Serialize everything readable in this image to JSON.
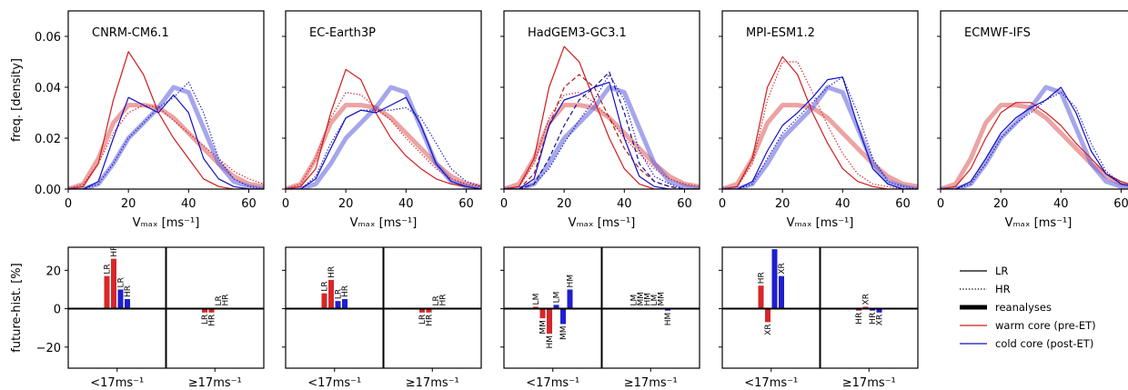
{
  "chart_data": [
    {
      "type": "line",
      "title": "CNRM-CM6.1",
      "xlabel": "Vₘₐₓ [ms⁻¹]",
      "ylabel": "freq. [density]",
      "x": [
        0,
        5,
        10,
        15,
        20,
        25,
        30,
        35,
        40,
        45,
        50,
        55,
        60,
        65
      ],
      "xlim": [
        0,
        65
      ],
      "xticks": [
        0,
        20,
        40,
        60
      ],
      "ylim": [
        0,
        0.07
      ],
      "yticks": [
        {
          "value": 0,
          "label": "0.00"
        },
        {
          "value": 0.02,
          "label": "0.02"
        },
        {
          "value": 0.04,
          "label": "0.04"
        },
        {
          "value": 0.06,
          "label": "0.06"
        }
      ],
      "series": [
        {
          "name": "reanalyses",
          "color": "#e06666",
          "style": "thick",
          "values": [
            0,
            0.002,
            0.012,
            0.026,
            0.033,
            0.033,
            0.032,
            0.028,
            0.022,
            0.016,
            0.01,
            0.005,
            0.002,
            0.001
          ]
        },
        {
          "name": "reanalyses",
          "color": "#6a6ae0",
          "style": "thick",
          "values": [
            0,
            0,
            0.002,
            0.01,
            0.02,
            0.026,
            0.032,
            0.04,
            0.038,
            0.024,
            0.01,
            0.003,
            0.001,
            0
          ]
        },
        {
          "name": "LR",
          "color": "#d01c1c",
          "style": "solid",
          "values": [
            0,
            0.001,
            0.01,
            0.035,
            0.054,
            0.045,
            0.03,
            0.02,
            0.012,
            0.004,
            0.001,
            0,
            0,
            0
          ]
        },
        {
          "name": "HR",
          "color": "#d01c1c",
          "style": "dotted",
          "values": [
            0,
            0.002,
            0.01,
            0.022,
            0.03,
            0.033,
            0.032,
            0.027,
            0.022,
            0.017,
            0.012,
            0.007,
            0.004,
            0.002
          ]
        },
        {
          "name": "LR",
          "color": "#1010c0",
          "style": "solid",
          "values": [
            0,
            0,
            0.003,
            0.02,
            0.036,
            0.033,
            0.03,
            0.037,
            0.03,
            0.012,
            0.004,
            0.001,
            0,
            0
          ]
        },
        {
          "name": "HR",
          "color": "#1010c0",
          "style": "dotted",
          "values": [
            0,
            0,
            0.002,
            0.01,
            0.02,
            0.026,
            0.032,
            0.036,
            0.042,
            0.03,
            0.012,
            0.004,
            0.001,
            0
          ]
        }
      ]
    },
    {
      "type": "line",
      "title": "EC-Earth3P",
      "xlabel": "Vₘₐₓ [ms⁻¹]",
      "x": [
        0,
        5,
        10,
        15,
        20,
        25,
        30,
        35,
        40,
        45,
        50,
        55,
        60,
        65
      ],
      "xlim": [
        0,
        65
      ],
      "xticks": [
        0,
        20,
        40,
        60
      ],
      "ylim": [
        0,
        0.07
      ],
      "series": [
        {
          "name": "reanalyses",
          "color": "#e06666",
          "style": "thick",
          "values": [
            0,
            0.002,
            0.012,
            0.026,
            0.033,
            0.033,
            0.032,
            0.028,
            0.022,
            0.016,
            0.01,
            0.005,
            0.002,
            0.001
          ]
        },
        {
          "name": "reanalyses",
          "color": "#6a6ae0",
          "style": "thick",
          "values": [
            0,
            0,
            0.002,
            0.01,
            0.02,
            0.026,
            0.032,
            0.04,
            0.038,
            0.024,
            0.01,
            0.003,
            0.001,
            0
          ]
        },
        {
          "name": "LR",
          "color": "#d01c1c",
          "style": "solid",
          "values": [
            0,
            0.001,
            0.008,
            0.03,
            0.047,
            0.043,
            0.03,
            0.02,
            0.013,
            0.008,
            0.004,
            0.002,
            0.001,
            0
          ]
        },
        {
          "name": "HR",
          "color": "#d01c1c",
          "style": "dotted",
          "values": [
            0,
            0.002,
            0.012,
            0.028,
            0.038,
            0.037,
            0.032,
            0.027,
            0.02,
            0.014,
            0.008,
            0.004,
            0.002,
            0.001
          ]
        },
        {
          "name": "LR",
          "color": "#1010c0",
          "style": "solid",
          "values": [
            0,
            0,
            0.004,
            0.016,
            0.028,
            0.031,
            0.03,
            0.033,
            0.036,
            0.025,
            0.01,
            0.003,
            0.001,
            0
          ]
        },
        {
          "name": "HR",
          "color": "#1010c0",
          "style": "dotted",
          "values": [
            0,
            0,
            0.005,
            0.018,
            0.028,
            0.031,
            0.031,
            0.031,
            0.032,
            0.028,
            0.018,
            0.008,
            0.003,
            0.001
          ]
        }
      ]
    },
    {
      "type": "line",
      "title": "HadGEM3-GC3.1",
      "xlabel": "Vₘₐₓ [ms⁻¹]",
      "x": [
        0,
        5,
        10,
        15,
        20,
        25,
        30,
        35,
        40,
        45,
        50,
        55,
        60,
        65
      ],
      "xlim": [
        0,
        65
      ],
      "xticks": [
        0,
        20,
        40,
        60
      ],
      "ylim": [
        0,
        0.07
      ],
      "series": [
        {
          "name": "reanalyses",
          "color": "#e06666",
          "style": "thick",
          "values": [
            0,
            0.002,
            0.012,
            0.026,
            0.033,
            0.033,
            0.032,
            0.028,
            0.022,
            0.016,
            0.01,
            0.005,
            0.002,
            0.001
          ]
        },
        {
          "name": "reanalyses",
          "color": "#6a6ae0",
          "style": "thick",
          "values": [
            0,
            0,
            0.002,
            0.01,
            0.02,
            0.026,
            0.032,
            0.04,
            0.038,
            0.024,
            0.01,
            0.003,
            0.001,
            0
          ]
        },
        {
          "name": "LR",
          "color": "#d01c1c",
          "style": "solid",
          "values": [
            0,
            0.001,
            0.012,
            0.04,
            0.056,
            0.05,
            0.035,
            0.02,
            0.008,
            0.002,
            0,
            0,
            0,
            0
          ]
        },
        {
          "name": "MM",
          "color": "#b01818",
          "style": "dashed",
          "values": [
            0,
            0,
            0.006,
            0.025,
            0.04,
            0.045,
            0.04,
            0.028,
            0.016,
            0.008,
            0.003,
            0.001,
            0,
            0
          ]
        },
        {
          "name": "HR",
          "color": "#d01c1c",
          "style": "dotted",
          "values": [
            0,
            0.001,
            0.01,
            0.028,
            0.037,
            0.038,
            0.034,
            0.028,
            0.02,
            0.014,
            0.008,
            0.004,
            0.002,
            0.001
          ]
        },
        {
          "name": "LR",
          "color": "#1010c0",
          "style": "solid",
          "values": [
            0,
            0,
            0.004,
            0.025,
            0.035,
            0.037,
            0.04,
            0.042,
            0.02,
            0.005,
            0.001,
            0,
            0,
            0
          ]
        },
        {
          "name": "MM",
          "color": "#101090",
          "style": "dashed",
          "values": [
            0,
            0,
            0.002,
            0.012,
            0.025,
            0.035,
            0.04,
            0.046,
            0.03,
            0.01,
            0.003,
            0.001,
            0,
            0
          ]
        },
        {
          "name": "HR",
          "color": "#1010c0",
          "style": "dotted",
          "values": [
            0,
            0,
            0.002,
            0.008,
            0.018,
            0.027,
            0.035,
            0.045,
            0.035,
            0.015,
            0.005,
            0.002,
            0,
            0
          ]
        }
      ]
    },
    {
      "type": "line",
      "title": "MPI-ESM1.2",
      "xlabel": "Vₘₐₓ [ms⁻¹]",
      "x": [
        0,
        5,
        10,
        15,
        20,
        25,
        30,
        35,
        40,
        45,
        50,
        55,
        60,
        65
      ],
      "xlim": [
        0,
        65
      ],
      "xticks": [
        0,
        20,
        40,
        60
      ],
      "ylim": [
        0,
        0.07
      ],
      "series": [
        {
          "name": "reanalyses",
          "color": "#e06666",
          "style": "thick",
          "values": [
            0,
            0.002,
            0.012,
            0.026,
            0.033,
            0.033,
            0.032,
            0.028,
            0.022,
            0.016,
            0.01,
            0.005,
            0.002,
            0.001
          ]
        },
        {
          "name": "reanalyses",
          "color": "#6a6ae0",
          "style": "thick",
          "values": [
            0,
            0,
            0.002,
            0.01,
            0.02,
            0.026,
            0.032,
            0.04,
            0.038,
            0.024,
            0.01,
            0.003,
            0.001,
            0
          ]
        },
        {
          "name": "LR",
          "color": "#d01c1c",
          "style": "solid",
          "values": [
            0,
            0.001,
            0.012,
            0.04,
            0.052,
            0.045,
            0.03,
            0.018,
            0.008,
            0.003,
            0.001,
            0,
            0,
            0
          ]
        },
        {
          "name": "HR",
          "color": "#d01c1c",
          "style": "dotted",
          "values": [
            0,
            0.001,
            0.01,
            0.035,
            0.05,
            0.05,
            0.038,
            0.025,
            0.014,
            0.006,
            0.002,
            0.001,
            0,
            0
          ]
        },
        {
          "name": "LR",
          "color": "#1010c0",
          "style": "solid",
          "values": [
            0,
            0,
            0.003,
            0.015,
            0.025,
            0.03,
            0.036,
            0.043,
            0.044,
            0.025,
            0.008,
            0.002,
            0,
            0
          ]
        },
        {
          "name": "HR",
          "color": "#1010c0",
          "style": "dotted",
          "values": [
            0,
            0,
            0.002,
            0.012,
            0.022,
            0.028,
            0.034,
            0.04,
            0.044,
            0.03,
            0.012,
            0.003,
            0.001,
            0
          ]
        }
      ]
    },
    {
      "type": "line",
      "title": "ECMWF-IFS",
      "xlabel": "Vₘₐₓ [ms⁻¹]",
      "x": [
        0,
        5,
        10,
        15,
        20,
        25,
        30,
        35,
        40,
        45,
        50,
        55,
        60,
        65
      ],
      "xlim": [
        0,
        65
      ],
      "xticks": [
        0,
        20,
        40,
        60
      ],
      "ylim": [
        0,
        0.07
      ],
      "series": [
        {
          "name": "reanalyses",
          "color": "#e06666",
          "style": "thick",
          "values": [
            0,
            0.002,
            0.012,
            0.026,
            0.033,
            0.033,
            0.032,
            0.028,
            0.022,
            0.016,
            0.01,
            0.005,
            0.002,
            0.001
          ]
        },
        {
          "name": "reanalyses",
          "color": "#6a6ae0",
          "style": "thick",
          "values": [
            0,
            0,
            0.002,
            0.01,
            0.02,
            0.026,
            0.032,
            0.04,
            0.038,
            0.024,
            0.01,
            0.003,
            0.001,
            0
          ]
        },
        {
          "name": "LR",
          "color": "#d01c1c",
          "style": "solid",
          "values": [
            0,
            0.001,
            0.008,
            0.02,
            0.03,
            0.034,
            0.034,
            0.03,
            0.025,
            0.018,
            0.012,
            0.006,
            0.003,
            0.001
          ]
        },
        {
          "name": "LR",
          "color": "#1010c0",
          "style": "solid",
          "values": [
            0,
            0,
            0.003,
            0.012,
            0.022,
            0.028,
            0.032,
            0.035,
            0.04,
            0.03,
            0.015,
            0.006,
            0.002,
            0.001
          ]
        },
        {
          "name": "HR",
          "color": "#1010c0",
          "style": "dotted",
          "values": [
            0,
            0,
            0.002,
            0.01,
            0.02,
            0.026,
            0.03,
            0.035,
            0.038,
            0.032,
            0.018,
            0.007,
            0.002,
            0.001
          ]
        }
      ]
    },
    {
      "type": "bar",
      "ylabel": "future-hist. [%]",
      "categories": [
        "<17ms⁻¹",
        "≥17ms⁻¹"
      ],
      "ylim": [
        -31,
        32
      ],
      "yticks": [
        {
          "value": -20,
          "label": "−20"
        },
        0,
        20
      ],
      "groups": [
        {
          "label": "LR",
          "color": "#d62728",
          "values": [
            17,
            -2
          ]
        },
        {
          "label": "HR",
          "color": "#d62728",
          "values": [
            26,
            -2
          ]
        },
        {
          "label": "LR",
          "color": "#1f1fd0",
          "values": [
            10,
            0.5
          ]
        },
        {
          "label": "HR",
          "color": "#1f1fd0",
          "values": [
            5,
            0.5
          ]
        }
      ]
    },
    {
      "type": "bar",
      "categories": [
        "<17ms⁻¹",
        "≥17ms⁻¹"
      ],
      "ylim": [
        -31,
        32
      ],
      "groups": [
        {
          "label": "LR",
          "color": "#d62728",
          "values": [
            8,
            -2
          ]
        },
        {
          "label": "HR",
          "color": "#d62728",
          "values": [
            15,
            -2
          ]
        },
        {
          "label": "LR",
          "color": "#1f1fd0",
          "values": [
            4,
            0.5
          ]
        },
        {
          "label": "HR",
          "color": "#1f1fd0",
          "values": [
            5,
            0.5
          ]
        }
      ]
    },
    {
      "type": "bar",
      "categories": [
        "<17ms⁻¹",
        "≥17ms⁻¹"
      ],
      "ylim": [
        -31,
        32
      ],
      "groups": [
        {
          "label": "LM",
          "color": "#d62728",
          "values": [
            1,
            0.5
          ]
        },
        {
          "label": "MM",
          "color": "#d62728",
          "values": [
            -5,
            0.5
          ]
        },
        {
          "label": "HM",
          "color": "#d62728",
          "values": [
            -13,
            0.5
          ]
        },
        {
          "label": "LM",
          "color": "#1f1fd0",
          "values": [
            2,
            0.5
          ]
        },
        {
          "label": "MM",
          "color": "#1f1fd0",
          "values": [
            -8,
            0.5
          ]
        },
        {
          "label": "HM",
          "color": "#1f1fd0",
          "values": [
            10,
            -1
          ]
        }
      ]
    },
    {
      "type": "bar",
      "categories": [
        "<17ms⁻¹",
        "≥17ms⁻¹"
      ],
      "ylim": [
        -31,
        32
      ],
      "groups": [
        {
          "label": "HR",
          "color": "#d62728",
          "values": [
            12,
            -1
          ]
        },
        {
          "label": "XR",
          "color": "#d62728",
          "values": [
            -7,
            1
          ]
        },
        {
          "label": "HR",
          "color": "#1f1fd0",
          "values": [
            31,
            -1
          ]
        },
        {
          "label": "XR",
          "color": "#1f1fd0",
          "values": [
            17,
            -2
          ]
        }
      ]
    }
  ],
  "legend": [
    {
      "label": "LR",
      "color": "#000000",
      "style": "solid"
    },
    {
      "label": "HR",
      "color": "#000000",
      "style": "dotted"
    },
    {
      "label": "reanalyses",
      "color": "#000000",
      "style": "thick"
    },
    {
      "label": "warm core (pre-ET)",
      "color": "#d01c1c",
      "style": "solid"
    },
    {
      "label": "cold core (post-ET)",
      "color": "#1010c0",
      "style": "solid"
    }
  ]
}
